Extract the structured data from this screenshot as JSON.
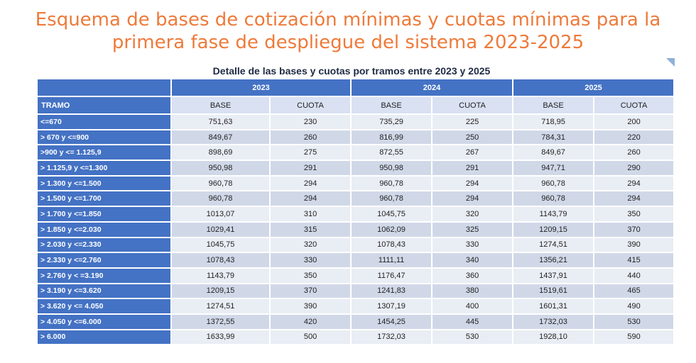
{
  "title_line1": "Esquema de bases de cotización mínimas y cuotas mínimas para la",
  "title_line2": "primera fase de despliegue del sistema 2023-2025",
  "subtitle": "Detalle de las bases y cuotas por tramos entre 2023 y 2025",
  "colors": {
    "title": "#ee7a3a",
    "header_blue": "#4472c4",
    "row_light": "#e9edf4",
    "row_dark": "#d0d8e8"
  },
  "table": {
    "years": [
      "2023",
      "2024",
      "2025"
    ],
    "tramo_label": "TRAMO",
    "base_label": "BASE",
    "cuota_label": "CUOTA",
    "rows": [
      [
        "<=670",
        "751,63",
        "230",
        "735,29",
        "225",
        "718,95",
        "200"
      ],
      [
        "> 670 y <=900",
        "849,67",
        "260",
        "816,99",
        "250",
        "784,31",
        "220"
      ],
      [
        ">900 y <= 1.125,9",
        "898,69",
        "275",
        "872,55",
        "267",
        "849,67",
        "260"
      ],
      [
        "> 1.125,9 y <=1.300",
        "950,98",
        "291",
        "950,98",
        "291",
        "947,71",
        "290"
      ],
      [
        "> 1.300 y <=1.500",
        "960,78",
        "294",
        "960,78",
        "294",
        "960,78",
        "294"
      ],
      [
        "> 1.500 y <=1.700",
        "960,78",
        "294",
        "960,78",
        "294",
        "960,78",
        "294"
      ],
      [
        "> 1.700 y <=1.850",
        "1013,07",
        "310",
        "1045,75",
        "320",
        "1143,79",
        "350"
      ],
      [
        "> 1.850 y <=2.030",
        "1029,41",
        "315",
        "1062,09",
        "325",
        "1209,15",
        "370"
      ],
      [
        "> 2.030 y <=2.330",
        "1045,75",
        "320",
        "1078,43",
        "330",
        "1274,51",
        "390"
      ],
      [
        "> 2.330 y <=2.760",
        "1078,43",
        "330",
        "1111,11",
        "340",
        "1356,21",
        "415"
      ],
      [
        "> 2.760 y < =3.190",
        "1143,79",
        "350",
        "1176,47",
        "360",
        "1437,91",
        "440"
      ],
      [
        "> 3.190 y <=3.620",
        "1209,15",
        "370",
        "1241,83",
        "380",
        "1519,61",
        "465"
      ],
      [
        "> 3.620 y <= 4.050",
        "1274,51",
        "390",
        "1307,19",
        "400",
        "1601,31",
        "490"
      ],
      [
        "> 4.050 y <=6.000",
        "1372,55",
        "420",
        "1454,25",
        "445",
        "1732,03",
        "530"
      ],
      [
        "> 6.000",
        "1633,99",
        "500",
        "1732,03",
        "530",
        "1928,10",
        "590"
      ]
    ]
  }
}
